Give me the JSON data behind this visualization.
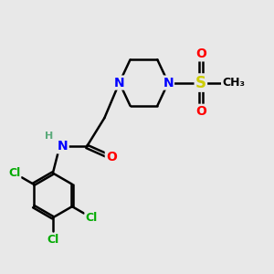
{
  "bg_color": "#e8e8e8",
  "bond_color": "#000000",
  "bond_width": 1.8,
  "atom_colors": {
    "N": "#0000ff",
    "O": "#ff0000",
    "S": "#cccc00",
    "Cl": "#00aa00",
    "H": "#5aaa7a",
    "C": "#000000"
  },
  "font_size": 10,
  "fig_size": [
    3.0,
    3.0
  ],
  "dpi": 100,
  "xlim": [
    0,
    10
  ],
  "ylim": [
    0,
    10
  ]
}
